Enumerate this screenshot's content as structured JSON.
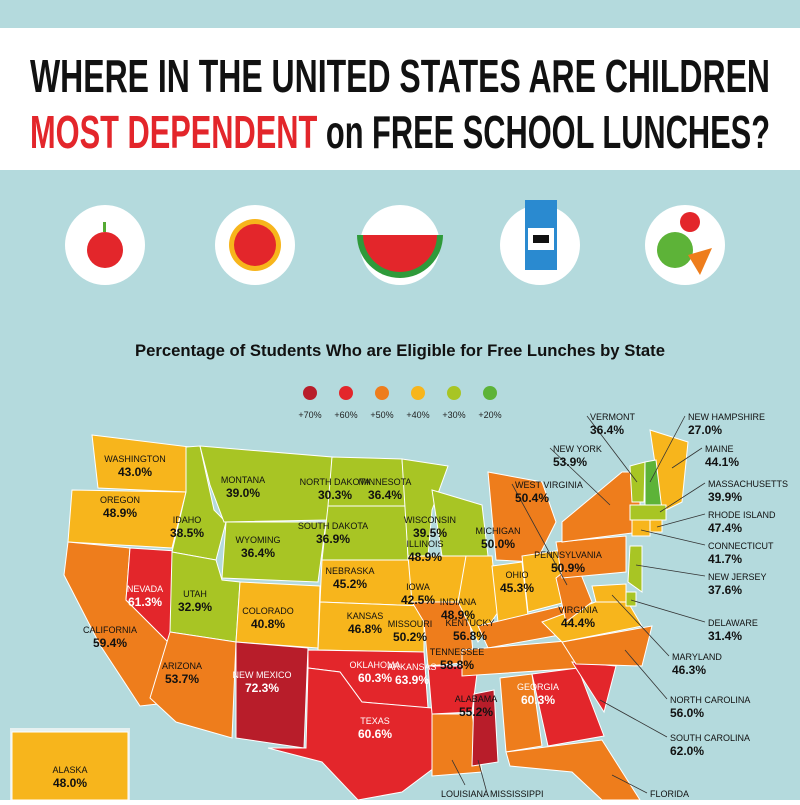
{
  "header": {
    "line1": "WHERE IN THE UNITED STATES ARE CHILDREN",
    "line2_highlight": "MOST DEPENDENT",
    "line2_rest": "on FREE SCHOOL LUNCHES?"
  },
  "subtitle": "Percentage of Students Who are Eligible for Free Lunches by State",
  "legend": [
    {
      "label": "+70%",
      "color": "#b81d2a"
    },
    {
      "label": "+60%",
      "color": "#e3262b"
    },
    {
      "label": "+50%",
      "color": "#ee7d1c"
    },
    {
      "label": "+40%",
      "color": "#f7b51c"
    },
    {
      "label": "+30%",
      "color": "#a8c524"
    },
    {
      "label": "+20%",
      "color": "#5db338"
    }
  ],
  "states": [
    {
      "name": "WASHINGTON",
      "value": "43.0%",
      "color": "#f7b51c"
    },
    {
      "name": "OREGON",
      "value": "48.9%",
      "color": "#f7b51c"
    },
    {
      "name": "CALIFORNIA",
      "value": "59.4%",
      "color": "#ee7d1c"
    },
    {
      "name": "NEVADA",
      "value": "61.3%",
      "color": "#e3262b"
    },
    {
      "name": "IDAHO",
      "value": "38.5%",
      "color": "#a8c524"
    },
    {
      "name": "MONTANA",
      "value": "39.0%",
      "color": "#a8c524"
    },
    {
      "name": "WYOMING",
      "value": "36.4%",
      "color": "#a8c524"
    },
    {
      "name": "UTAH",
      "value": "32.9%",
      "color": "#a8c524"
    },
    {
      "name": "COLORADO",
      "value": "40.8%",
      "color": "#f7b51c"
    },
    {
      "name": "ARIZONA",
      "value": "53.7%",
      "color": "#ee7d1c"
    },
    {
      "name": "NEW MEXICO",
      "value": "72.3%",
      "color": "#b81d2a"
    },
    {
      "name": "NORTH DAKOTA",
      "value": "30.3%",
      "color": "#a8c524"
    },
    {
      "name": "SOUTH DAKOTA",
      "value": "36.9%",
      "color": "#a8c524"
    },
    {
      "name": "NEBRASKA",
      "value": "45.2%",
      "color": "#f7b51c"
    },
    {
      "name": "KANSAS",
      "value": "46.8%",
      "color": "#f7b51c"
    },
    {
      "name": "OKLAHOMA",
      "value": "60.3%",
      "color": "#e3262b"
    },
    {
      "name": "TEXAS",
      "value": "60.6%",
      "color": "#e3262b"
    },
    {
      "name": "MINNESOTA",
      "value": "36.4%",
      "color": "#a8c524"
    },
    {
      "name": "IOWA",
      "value": "42.5%",
      "color": "#f7b51c"
    },
    {
      "name": "MISSOURI",
      "value": "50.2%",
      "color": "#ee7d1c"
    },
    {
      "name": "ARKANSAS",
      "value": "63.9%",
      "color": "#e3262b"
    },
    {
      "name": "LOUISIANA",
      "color": "#ee7d1c"
    },
    {
      "name": "MISSISSIPPI",
      "color": "#b81d2a"
    },
    {
      "name": "WISCONSIN",
      "value": "39.5%",
      "color": "#a8c524"
    },
    {
      "name": "MICHIGAN",
      "value": "50.0%",
      "color": "#ee7d1c"
    },
    {
      "name": "ILLINOIS",
      "value": "48.9%",
      "color": "#f7b51c"
    },
    {
      "name": "INDIANA",
      "value": "48.9%",
      "color": "#f7b51c"
    },
    {
      "name": "OHIO",
      "value": "45.3%",
      "color": "#f7b51c"
    },
    {
      "name": "KENTUCKY",
      "value": "56.8%",
      "color": "#ee7d1c"
    },
    {
      "name": "TENNESSEE",
      "value": "58.8%",
      "color": "#ee7d1c"
    },
    {
      "name": "ALABAMA",
      "value": "55.2%",
      "color": "#ee7d1c"
    },
    {
      "name": "GEORGIA",
      "value": "60.3%",
      "color": "#e3262b"
    },
    {
      "name": "FLORIDA",
      "color": "#ee7d1c"
    },
    {
      "name": "SOUTH  CAROLINA",
      "value": "62.0%",
      "color": "#e3262b"
    },
    {
      "name": "NORTH CAROLINA",
      "value": "56.0%",
      "color": "#ee7d1c"
    },
    {
      "name": "VIRGINIA",
      "value": "44.4%",
      "color": "#f7b51c"
    },
    {
      "name": "WEST VIRGINIA",
      "value": "50.4%",
      "color": "#ee7d1c"
    },
    {
      "name": "PENNSYLVANIA",
      "value": "50.9%",
      "color": "#ee7d1c"
    },
    {
      "name": "NEW YORK",
      "value": "53.9%",
      "color": "#ee7d1c"
    },
    {
      "name": "MAINE",
      "value": "44.1%",
      "color": "#f7b51c"
    },
    {
      "name": "VERMONT",
      "value": "36.4%",
      "color": "#a8c524"
    },
    {
      "name": "NEW HAMPSHIRE",
      "value": "27.0%",
      "color": "#5db338"
    },
    {
      "name": "MASSACHUSETTS",
      "value": "39.9%",
      "color": "#a8c524"
    },
    {
      "name": "RHODE ISLAND",
      "value": "47.4%",
      "color": "#f7b51c"
    },
    {
      "name": "CONNECTICUT",
      "value": "41.7%",
      "color": "#f7b51c"
    },
    {
      "name": "NEW JERSEY",
      "value": "37.6%",
      "color": "#a8c524"
    },
    {
      "name": "DELAWARE",
      "value": "31.4%",
      "color": "#a8c524"
    },
    {
      "name": "MARYLAND",
      "value": "46.3%",
      "color": "#f7b51c"
    },
    {
      "name": "ALASKA",
      "value": "48.0%",
      "color": "#f7b51c"
    }
  ]
}
